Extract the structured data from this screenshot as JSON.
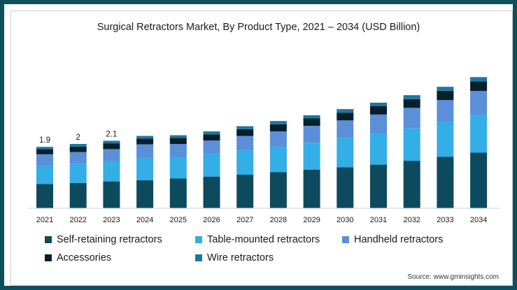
{
  "chart_data": {
    "type": "bar",
    "stacked": true,
    "title": "Surgical Retractors Market, By Product Type, 2021 – 2034 (USD Billion)",
    "xlabel": "",
    "ylabel": "",
    "ylim": [
      0,
      4.5
    ],
    "grid": false,
    "legend_position": "bottom",
    "categories": [
      "2021",
      "2022",
      "2023",
      "2024",
      "2025",
      "2026",
      "2027",
      "2028",
      "2029",
      "2030",
      "2031",
      "2032",
      "2033",
      "2034"
    ],
    "totals_labels": [
      "1.9",
      "2",
      "2.1",
      "",
      "",
      "",
      "",
      "",
      "",
      "",
      "",
      "",
      "",
      ""
    ],
    "series": [
      {
        "name": "Self-retaining retractors",
        "color": "#0d4a5e",
        "values": [
          0.75,
          0.78,
          0.83,
          0.87,
          0.92,
          0.98,
          1.04,
          1.12,
          1.19,
          1.27,
          1.35,
          1.47,
          1.59,
          1.72
        ]
      },
      {
        "name": "Table-mounted retractors",
        "color": "#33aee6",
        "values": [
          0.56,
          0.59,
          0.63,
          0.71,
          0.67,
          0.71,
          0.75,
          0.78,
          0.84,
          0.9,
          0.96,
          1.01,
          1.08,
          1.17
        ]
      },
      {
        "name": "Handheld retractors",
        "color": "#5b8fd8",
        "values": [
          0.36,
          0.37,
          0.37,
          0.4,
          0.4,
          0.41,
          0.45,
          0.48,
          0.52,
          0.55,
          0.59,
          0.63,
          0.68,
          0.74
        ]
      },
      {
        "name": "Accessories",
        "color": "#06202b",
        "values": [
          0.16,
          0.17,
          0.18,
          0.18,
          0.19,
          0.19,
          0.21,
          0.22,
          0.23,
          0.24,
          0.26,
          0.27,
          0.29,
          0.3
        ]
      },
      {
        "name": "Wire retractors",
        "color": "#1b78a3",
        "values": [
          0.07,
          0.08,
          0.08,
          0.08,
          0.08,
          0.09,
          0.09,
          0.1,
          0.1,
          0.11,
          0.11,
          0.12,
          0.12,
          0.13
        ]
      }
    ]
  },
  "source": "Source: www.gminsights.com"
}
